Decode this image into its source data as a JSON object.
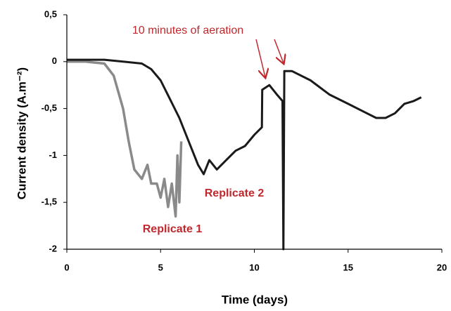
{
  "chart_data": {
    "type": "line",
    "xlabel": "Time (days)",
    "ylabel": "Current density (A.m⁻²)",
    "annotations": [
      "10 minutes of aeration"
    ],
    "xlim": [
      0,
      20
    ],
    "xticks": [
      0,
      5,
      10,
      15,
      20
    ],
    "ylim": [
      -2,
      0.5
    ],
    "yticks": [
      {
        "value": -2,
        "label": "-2"
      },
      {
        "value": -1.5,
        "label": "-1,5"
      },
      {
        "value": -1,
        "label": "-1"
      },
      {
        "value": -0.5,
        "label": "-0,5"
      },
      {
        "value": 0,
        "label": "0"
      },
      {
        "value": 0.5,
        "label": "0,5"
      }
    ],
    "series": [
      {
        "name": "Replicate 1",
        "color": "#8a8a8a",
        "x": [
          0,
          1,
          2,
          2.5,
          3,
          3.3,
          3.6,
          4,
          4.3,
          4.5,
          4.8,
          5,
          5.2,
          5.4,
          5.6,
          5.8,
          5.9,
          6.0,
          6.1
        ],
        "values": [
          0,
          0,
          -0.02,
          -0.15,
          -0.5,
          -0.85,
          -1.15,
          -1.25,
          -1.1,
          -1.3,
          -1.3,
          -1.45,
          -1.25,
          -1.55,
          -1.3,
          -1.65,
          -1.0,
          -1.5,
          -0.85
        ]
      },
      {
        "name": "Replicate 2",
        "color": "#1a1a1a",
        "x": [
          0,
          2,
          3,
          4,
          4.5,
          5,
          5.5,
          6,
          6.5,
          7,
          7.3,
          7.6,
          8,
          8.5,
          9,
          9.5,
          10,
          10.4,
          10.42,
          10.8,
          11.2,
          11.5,
          11.55,
          11.6,
          12,
          13,
          14,
          15,
          16,
          16.5,
          17,
          17.5,
          18,
          18.5,
          18.9
        ],
        "values": [
          0.02,
          0.02,
          0,
          -0.02,
          -0.08,
          -0.2,
          -0.4,
          -0.6,
          -0.85,
          -1.1,
          -1.2,
          -1.05,
          -1.15,
          -1.05,
          -0.95,
          -0.9,
          -0.78,
          -0.7,
          -0.3,
          -0.25,
          -0.35,
          -0.42,
          -2,
          -0.1,
          -0.1,
          -0.2,
          -0.35,
          -0.45,
          -0.55,
          -0.6,
          -0.6,
          -0.55,
          -0.45,
          -0.42,
          -0.38
        ]
      }
    ]
  }
}
